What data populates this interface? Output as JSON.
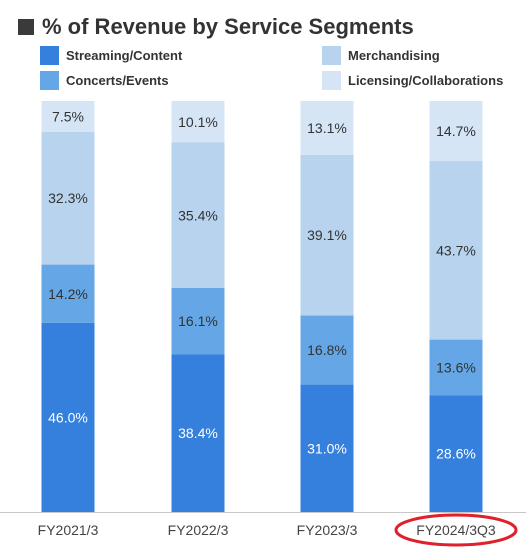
{
  "title": "% of Revenue by Service Segments",
  "chart_data": {
    "type": "bar",
    "stacked": true,
    "categories": [
      "FY2021/3",
      "FY2022/3",
      "FY2023/3",
      "FY2024/3Q3"
    ],
    "series": [
      {
        "name": "Streaming/Content",
        "color": "#3580dc",
        "values": [
          46.0,
          38.4,
          31.0,
          28.6
        ]
      },
      {
        "name": "Concerts/Events",
        "color": "#64a6e6",
        "values": [
          14.2,
          16.1,
          16.8,
          13.6
        ]
      },
      {
        "name": "Merchandising",
        "color": "#b7d3ee",
        "values": [
          32.3,
          35.4,
          39.1,
          43.7
        ]
      },
      {
        "name": "Licensing/Collaborations",
        "color": "#d5e5f6",
        "values": [
          7.5,
          10.1,
          13.1,
          14.7
        ]
      }
    ],
    "data_labels": [
      [
        "46.0%",
        "38.4%",
        "31.0%",
        "28.6%"
      ],
      [
        "14.2%",
        "16.1%",
        "16.8%",
        "13.6%"
      ],
      [
        "32.3%",
        "35.4%",
        "39.1%",
        "43.7%"
      ],
      [
        "7.5%",
        "10.1%",
        "13.1%",
        "14.7%"
      ]
    ],
    "ylim": [
      0,
      100
    ],
    "grid": false,
    "legend_position": "top",
    "highlighted_category": "FY2024/3Q3",
    "highlight_color": "#e0202a"
  }
}
